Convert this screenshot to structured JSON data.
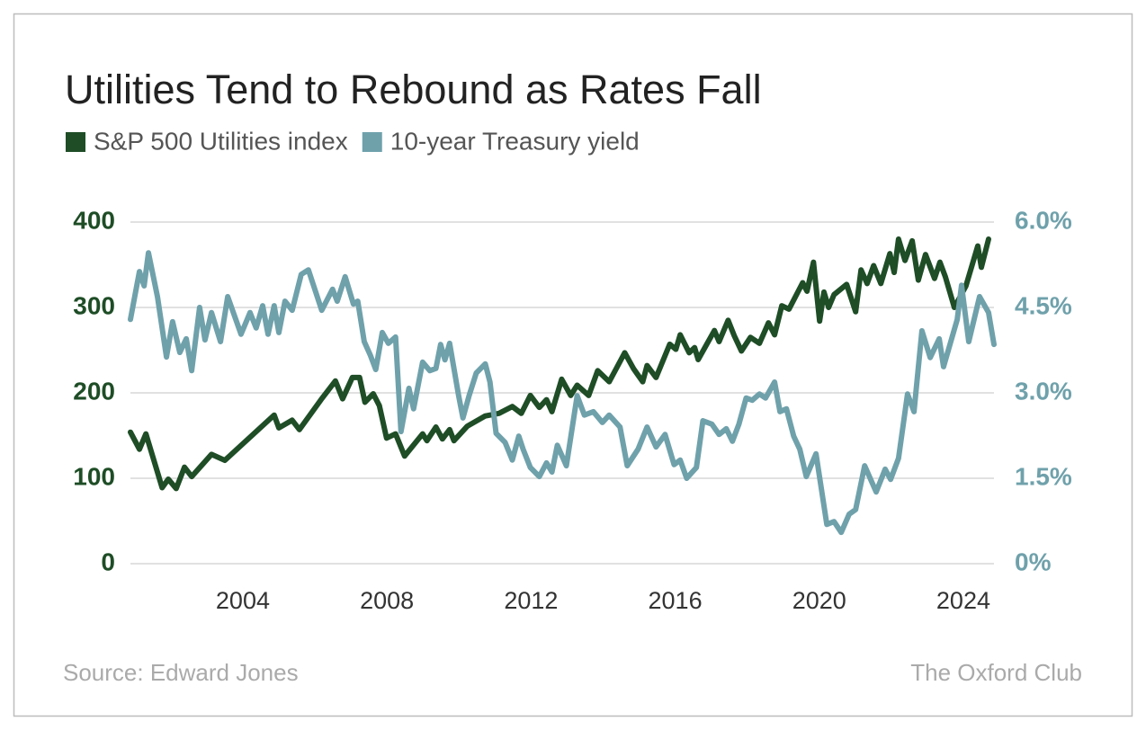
{
  "chart_data": {
    "type": "line",
    "title": "Utilities Tend to Rebound as Rates Fall",
    "source": "Source: Edward Jones",
    "publisher": "The Oxford Club",
    "xlim": [
      2000.88,
      2024.85
    ],
    "xticks": [
      2004,
      2008,
      2012,
      2016,
      2020,
      2024
    ],
    "ylim": [
      0,
      400
    ],
    "yticks": [
      0,
      100,
      200,
      300,
      400
    ],
    "y2lim": [
      0,
      6
    ],
    "y2ticks": [
      {
        "value": 0,
        "label": "0%"
      },
      {
        "value": 1.5,
        "label": "1.5%"
      },
      {
        "value": 3,
        "label": "3.0%"
      },
      {
        "value": 4.5,
        "label": "4.5%"
      },
      {
        "value": 6,
        "label": "6.0%"
      }
    ],
    "grid": true,
    "series": [
      {
        "name": "S&P 500 Utilities index",
        "color": "#1e4d26",
        "x": [
          2000.88,
          2001.13,
          2001.31,
          2001.76,
          2001.93,
          2002.15,
          2002.38,
          2002.58,
          2003.13,
          2003.5,
          2004.87,
          2005.0,
          2005.37,
          2005.57,
          2006.17,
          2006.57,
          2006.77,
          2007.04,
          2007.24,
          2007.39,
          2007.62,
          2007.79,
          2007.99,
          2008.24,
          2008.49,
          2008.99,
          2009.11,
          2009.36,
          2009.54,
          2009.74,
          2009.86,
          2010.23,
          2010.73,
          2011.11,
          2011.48,
          2011.73,
          2011.98,
          2012.23,
          2012.43,
          2012.58,
          2012.85,
          2013.1,
          2013.28,
          2013.6,
          2013.85,
          2014.17,
          2014.6,
          2014.85,
          2015.1,
          2015.22,
          2015.47,
          2015.85,
          2016.02,
          2016.14,
          2016.39,
          2016.54,
          2016.64,
          2017.09,
          2017.22,
          2017.47,
          2017.64,
          2017.84,
          2018.09,
          2018.34,
          2018.59,
          2018.76,
          2018.96,
          2019.16,
          2019.54,
          2019.66,
          2019.84,
          2020.01,
          2020.13,
          2020.26,
          2020.41,
          2020.76,
          2021.01,
          2021.16,
          2021.33,
          2021.51,
          2021.71,
          2021.96,
          2022.08,
          2022.2,
          2022.38,
          2022.58,
          2022.75,
          2022.95,
          2023.2,
          2023.35,
          2023.5,
          2023.75,
          2024.07,
          2024.4,
          2024.5,
          2024.7
        ],
        "values": [
          154,
          134,
          152,
          89,
          99,
          88,
          113,
          102,
          128,
          121,
          174,
          159,
          168,
          157,
          192,
          214,
          193,
          218,
          218,
          189,
          199,
          185,
          147,
          152,
          126,
          152,
          144,
          160,
          146,
          157,
          144,
          161,
          173,
          176,
          184,
          176,
          197,
          183,
          192,
          178,
          216,
          197,
          209,
          197,
          226,
          213,
          247,
          228,
          213,
          232,
          218,
          257,
          251,
          268,
          247,
          253,
          239,
          273,
          260,
          285,
          267,
          249,
          265,
          258,
          282,
          268,
          302,
          298,
          329,
          319,
          353,
          284,
          318,
          300,
          315,
          327,
          295,
          344,
          328,
          349,
          328,
          363,
          341,
          380,
          355,
          378,
          332,
          362,
          334,
          353,
          336,
          300,
          325,
          372,
          347,
          380
        ]
      },
      {
        "name": "10-year Treasury yield",
        "color": "#6fa1ab",
        "axis": "y2",
        "x": [
          2000.88,
          2001.13,
          2001.26,
          2001.38,
          2001.63,
          2001.88,
          2002.05,
          2002.25,
          2002.43,
          2002.58,
          2002.8,
          2002.95,
          2003.13,
          2003.38,
          2003.58,
          2003.95,
          2004.2,
          2004.37,
          2004.55,
          2004.7,
          2004.87,
          2005.0,
          2005.17,
          2005.37,
          2005.62,
          2005.82,
          2006.19,
          2006.49,
          2006.62,
          2006.84,
          2007.07,
          2007.19,
          2007.37,
          2007.54,
          2007.69,
          2007.87,
          2008.04,
          2008.24,
          2008.39,
          2008.61,
          2008.74,
          2008.99,
          2009.19,
          2009.36,
          2009.49,
          2009.61,
          2009.74,
          2009.99,
          2010.11,
          2010.28,
          2010.48,
          2010.73,
          2010.86,
          2011.03,
          2011.28,
          2011.48,
          2011.66,
          2011.78,
          2011.98,
          2012.23,
          2012.43,
          2012.58,
          2012.73,
          2012.98,
          2013.28,
          2013.48,
          2013.73,
          2013.98,
          2014.17,
          2014.47,
          2014.67,
          2014.97,
          2015.22,
          2015.47,
          2015.72,
          2015.97,
          2016.14,
          2016.32,
          2016.59,
          2016.77,
          2017.02,
          2017.22,
          2017.42,
          2017.59,
          2017.77,
          2017.97,
          2018.14,
          2018.34,
          2018.51,
          2018.76,
          2018.91,
          2019.09,
          2019.29,
          2019.46,
          2019.64,
          2019.91,
          2020.21,
          2020.41,
          2020.61,
          2020.83,
          2021.01,
          2021.26,
          2021.58,
          2021.83,
          2021.98,
          2022.2,
          2022.45,
          2022.63,
          2022.85,
          2023.08,
          2023.33,
          2023.45,
          2023.83,
          2023.95,
          2024.15,
          2024.45,
          2024.7,
          2024.85
        ],
        "values": [
          4.29,
          5.13,
          4.88,
          5.46,
          4.69,
          3.63,
          4.25,
          3.71,
          3.95,
          3.39,
          4.5,
          3.93,
          4.41,
          3.9,
          4.69,
          4.03,
          4.41,
          4.14,
          4.53,
          4.03,
          4.53,
          4.06,
          4.61,
          4.45,
          5.08,
          5.16,
          4.45,
          4.82,
          4.61,
          5.04,
          4.56,
          4.61,
          3.9,
          3.66,
          3.41,
          4.06,
          3.87,
          3.98,
          2.32,
          3.08,
          2.72,
          3.54,
          3.39,
          3.43,
          3.85,
          3.58,
          3.87,
          2.95,
          2.56,
          2.95,
          3.35,
          3.51,
          3.19,
          2.29,
          2.13,
          1.82,
          2.24,
          2.01,
          1.69,
          1.53,
          1.77,
          1.61,
          2.08,
          1.72,
          2.95,
          2.61,
          2.67,
          2.48,
          2.61,
          2.4,
          1.72,
          2.01,
          2.4,
          2.05,
          2.27,
          1.74,
          1.82,
          1.5,
          1.69,
          2.51,
          2.45,
          2.27,
          2.37,
          2.15,
          2.45,
          2.91,
          2.87,
          2.98,
          2.91,
          3.19,
          2.67,
          2.72,
          2.24,
          2.01,
          1.53,
          1.93,
          0.69,
          0.74,
          0.55,
          0.87,
          0.95,
          1.72,
          1.26,
          1.66,
          1.48,
          1.85,
          2.98,
          2.67,
          4.09,
          3.62,
          3.95,
          3.46,
          4.29,
          4.89,
          3.9,
          4.69,
          4.41,
          3.85
        ]
      }
    ]
  }
}
